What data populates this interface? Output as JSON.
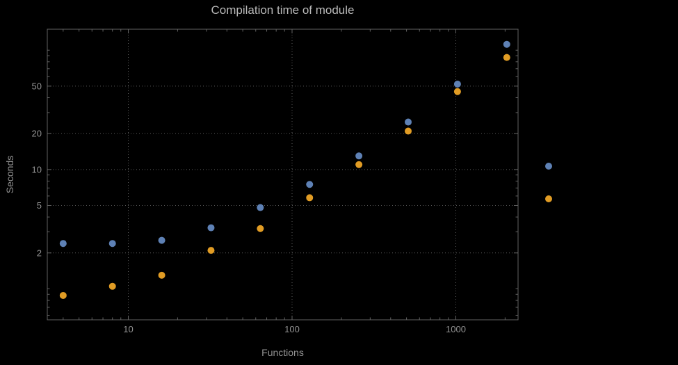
{
  "colors": {
    "background": "#000000",
    "frame": "#626262",
    "grid": "#5c5c5c",
    "title": "#b9b9b9",
    "tick_label": "#929292",
    "series_blue": "#5e81b5",
    "series_orange": "#e19c24"
  },
  "chart_data": {
    "type": "scatter",
    "title": "Compilation time of module",
    "xlabel": "Functions",
    "ylabel": "Seconds",
    "xscale": "log",
    "yscale": "log",
    "xlim": [
      3.2,
      2400
    ],
    "ylim": [
      0.55,
      150
    ],
    "x_ticks": [
      10,
      100,
      1000
    ],
    "y_ticks": [
      2,
      5,
      10,
      20,
      50
    ],
    "grid": "dotted",
    "legend_position": "right-outside",
    "x": [
      4,
      8,
      16,
      32,
      64,
      128,
      256,
      512,
      1024,
      2048
    ],
    "series": [
      {
        "name": "blue",
        "color": "#5e81b5",
        "values": [
          2.4,
          2.4,
          2.55,
          3.25,
          4.8,
          7.5,
          13,
          25,
          52,
          112
        ]
      },
      {
        "name": "orange",
        "color": "#e19c24",
        "values": [
          0.88,
          1.05,
          1.3,
          2.1,
          3.2,
          5.8,
          11,
          21,
          45,
          87
        ]
      }
    ],
    "legend": {
      "markers": [
        {
          "name": "blue",
          "color": "#5e81b5"
        },
        {
          "name": "orange",
          "color": "#e19c24"
        }
      ]
    }
  }
}
